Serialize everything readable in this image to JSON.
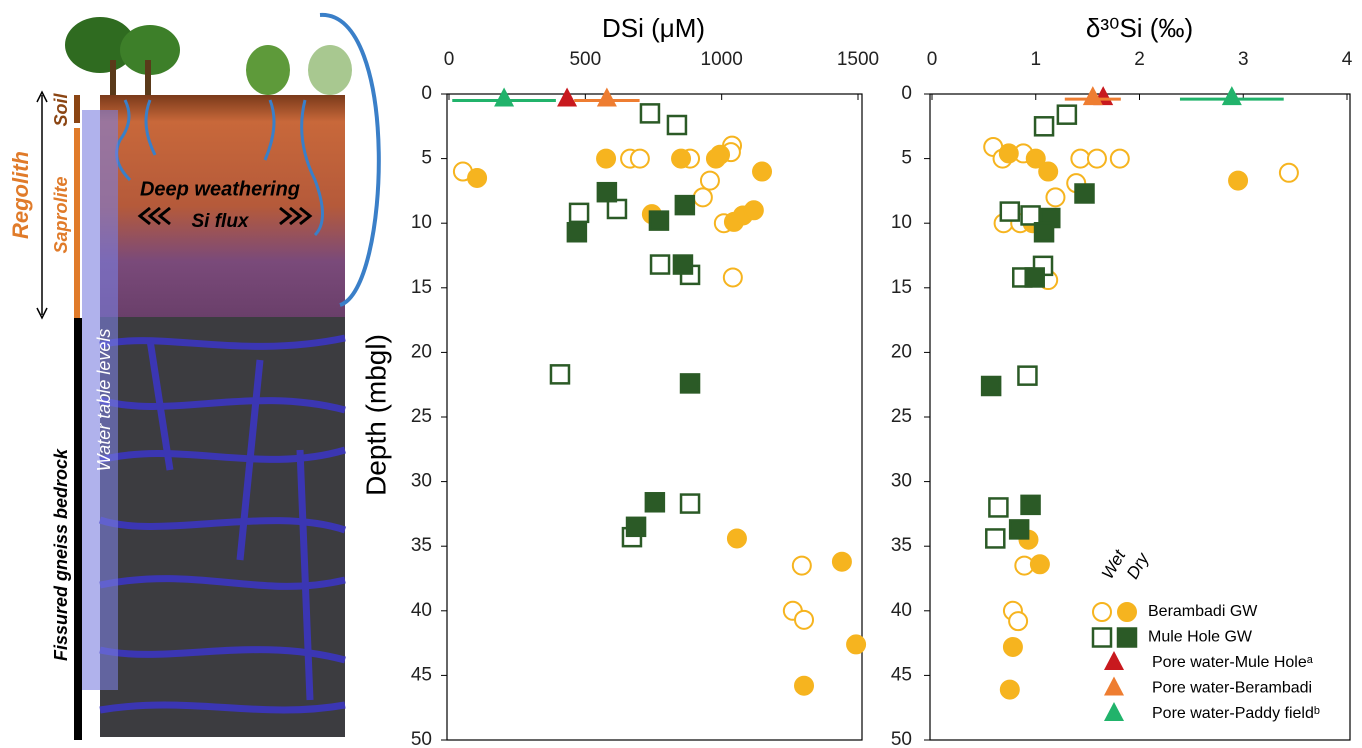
{
  "illustration": {
    "soil": "Soil",
    "regolith": "Regolith",
    "saprolite": "Saprolite",
    "bedrock": "Fissured gneiss bedrock",
    "water_table": "Water table levels",
    "weathering": "Deep weathering",
    "flux": "Si flux"
  },
  "chart_data": [
    {
      "type": "scatter",
      "x_label": "DSi (μM)",
      "y_label": "Depth (mbgl)",
      "xlim": [
        0,
        1500
      ],
      "ylim": [
        0,
        50
      ],
      "xticks": [
        0,
        500,
        1000,
        1500
      ],
      "yticks": [
        0,
        5,
        10,
        15,
        20,
        25,
        30,
        35,
        40,
        45,
        50
      ],
      "y_inverted": true,
      "x_axis_top": true,
      "series": [
        {
          "color": "#f6b41f",
          "marker": "circle",
          "wet": {
            "x": [
              51,
              1038,
              1034,
              664,
              700,
              884,
              957,
              931,
              1008,
              1041,
              1261,
              1302,
              1294
            ],
            "y": [
              6.0,
              4.0,
              4.5,
              5.0,
              5.0,
              5.0,
              6.7,
              8.0,
              10.0,
              14.2,
              40.0,
              40.7,
              36.5
            ]
          },
          "dry": {
            "x": [
              103,
              576,
              744,
              851,
              979,
              994,
              1045,
              1078,
              1118,
              1148,
              1056,
              1441,
              1493,
              1302
            ],
            "y": [
              6.5,
              5.0,
              9.3,
              5.0,
              5.0,
              4.7,
              9.9,
              9.4,
              9.0,
              6.0,
              34.4,
              36.2,
              42.6,
              45.8
            ]
          }
        },
        {
          "color": "#2b5a26",
          "marker": "square",
          "wet": {
            "x": [
              737,
              836,
              477,
              616,
              774,
              884,
              407,
              884,
              671
            ],
            "y": [
              1.5,
              2.4,
              9.2,
              8.9,
              13.2,
              14.0,
              21.7,
              31.7,
              34.3
            ]
          },
          "dry": {
            "x": [
              579,
              469,
              770,
              865,
              858,
              884,
              755,
              686
            ],
            "y": [
              7.6,
              10.7,
              9.8,
              8.6,
              13.2,
              22.4,
              31.6,
              33.5
            ]
          }
        },
        {
          "color": "#c8191e",
          "marker": "triangle",
          "x": [
            433
          ],
          "y": [
            0.5
          ],
          "xerr": [
            0
          ]
        },
        {
          "color": "#ee7d31",
          "marker": "triangle",
          "x": [
            579
          ],
          "y": [
            0.5
          ],
          "xerr": [
            120
          ]
        },
        {
          "color": "#21b36b",
          "marker": "triangle",
          "x": [
            202
          ],
          "y": [
            0.5
          ],
          "xerr": [
            190
          ]
        }
      ]
    },
    {
      "type": "scatter",
      "x_label": "δ³⁰Si (‰)",
      "xlim": [
        0,
        4
      ],
      "ylim": [
        0,
        50
      ],
      "xticks": [
        0,
        1,
        2,
        3,
        4
      ],
      "yticks": [
        0,
        5,
        10,
        15,
        20,
        25,
        30,
        35,
        40,
        45,
        50
      ],
      "y_inverted": true,
      "x_axis_top": true,
      "legend_headers": [
        "Wet",
        "Dry"
      ],
      "series": [
        {
          "name": "Berambadi GW",
          "color": "#f6b41f",
          "marker": "circle",
          "wet": {
            "x": [
              0.59,
              0.68,
              0.88,
              1.43,
              1.59,
              1.81,
              3.44,
              1.39,
              1.19,
              0.69,
              0.85,
              1.12,
              0.78,
              0.83,
              0.89
            ],
            "y": [
              4.1,
              5.0,
              4.6,
              5.0,
              5.0,
              5.0,
              6.1,
              6.9,
              8.0,
              10.0,
              10.0,
              14.4,
              40.0,
              40.8,
              36.5
            ]
          },
          "dry": {
            "x": [
              0.74,
              1.0,
              1.12,
              2.95,
              0.97,
              0.93,
              1.04,
              0.78,
              0.75
            ],
            "y": [
              4.6,
              5.0,
              6.0,
              6.7,
              10.0,
              34.5,
              36.4,
              42.8,
              46.1
            ]
          }
        },
        {
          "name": "Mule Hole GW",
          "color": "#2b5a26",
          "marker": "square",
          "wet": {
            "x": [
              1.3,
              1.08,
              0.75,
              0.95,
              1.07,
              0.87,
              0.92,
              0.64,
              0.61
            ],
            "y": [
              1.6,
              2.5,
              9.1,
              9.4,
              13.3,
              14.2,
              21.8,
              32.0,
              34.4
            ]
          },
          "dry": {
            "x": [
              1.47,
              1.14,
              1.08,
              0.99,
              0.57,
              0.95,
              0.84
            ],
            "y": [
              7.7,
              9.6,
              10.7,
              14.2,
              22.6,
              31.8,
              33.7
            ]
          }
        },
        {
          "name": "Pore water-Mule Holeᵃ",
          "color": "#c8191e",
          "marker": "triangle",
          "x": [
            1.65
          ],
          "y": [
            0.4
          ],
          "xerr": [
            0
          ]
        },
        {
          "name": "Pore water-Berambadi",
          "color": "#ee7d31",
          "marker": "triangle",
          "x": [
            1.55
          ],
          "y": [
            0.4
          ],
          "xerr": [
            0.27
          ]
        },
        {
          "name": "Pore water-Paddy fieldᵇ",
          "color": "#21b36b",
          "marker": "triangle",
          "x": [
            2.89
          ],
          "y": [
            0.4
          ],
          "xerr": [
            0.5
          ]
        }
      ]
    }
  ]
}
